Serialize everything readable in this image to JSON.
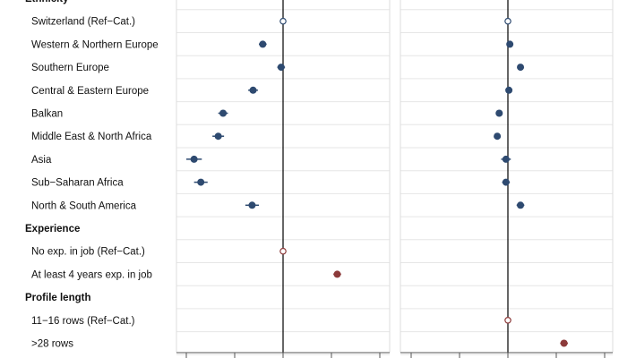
{
  "chart_data": {
    "type": "dot-whisker",
    "colors": {
      "ethnicity": "#2e4a70",
      "experience_and_length": "#8c3a3a",
      "reference_marker": "open-circle",
      "zero_line": "#000000",
      "gridline": "#e6e6e6"
    },
    "x_ticks_shown_without_labels": true,
    "rows": [
      {
        "label": "Ethnicity",
        "header": true
      },
      {
        "label": "Switzerland (Ref−Cat.)",
        "reference": true,
        "group": "ethnicity"
      },
      {
        "label": "Western & Northern Europe",
        "group": "ethnicity"
      },
      {
        "label": "Southern Europe",
        "group": "ethnicity"
      },
      {
        "label": "Central & Eastern Europe",
        "group": "ethnicity"
      },
      {
        "label": "Balkan",
        "group": "ethnicity"
      },
      {
        "label": "Middle East & North Africa",
        "group": "ethnicity"
      },
      {
        "label": "Asia",
        "group": "ethnicity"
      },
      {
        "label": "Sub−Saharan Africa",
        "group": "ethnicity"
      },
      {
        "label": "North & South America",
        "group": "ethnicity"
      },
      {
        "label": "Experience",
        "header": true
      },
      {
        "label": "No exp. in job (Ref−Cat.)",
        "reference": true,
        "group": "experience_and_length"
      },
      {
        "label": "At least 4 years exp. in job",
        "group": "experience_and_length"
      },
      {
        "label": "Profile length",
        "header": true
      },
      {
        "label": "11−16 rows (Ref−Cat.)",
        "reference": true,
        "group": "experience_and_length"
      },
      {
        "label": ">28 rows",
        "group": "experience_and_length"
      }
    ],
    "panels": [
      {
        "xlim": [
          -1.0,
          1.0
        ],
        "ticks": [
          -1.0,
          -0.5,
          0.0,
          0.5,
          1.0
        ],
        "points": [
          null,
          {
            "value": 0.0,
            "lo": 0.0,
            "hi": 0.0
          },
          {
            "value": -0.21,
            "lo": -0.25,
            "hi": -0.17
          },
          {
            "value": -0.02,
            "lo": -0.06,
            "hi": 0.02
          },
          {
            "value": -0.31,
            "lo": -0.36,
            "hi": -0.26
          },
          {
            "value": -0.62,
            "lo": -0.67,
            "hi": -0.57
          },
          {
            "value": -0.67,
            "lo": -0.73,
            "hi": -0.61
          },
          {
            "value": -0.92,
            "lo": -1.0,
            "hi": -0.84
          },
          {
            "value": -0.85,
            "lo": -0.92,
            "hi": -0.78
          },
          {
            "value": -0.32,
            "lo": -0.39,
            "hi": -0.25
          },
          null,
          {
            "value": 0.0,
            "lo": 0.0,
            "hi": 0.0
          },
          {
            "value": 0.56,
            "lo": 0.52,
            "hi": 0.6
          },
          null,
          null,
          null
        ]
      },
      {
        "xlim": [
          -1.0,
          1.0
        ],
        "ticks": [
          -1.0,
          -0.5,
          0.0,
          0.5,
          1.0
        ],
        "points": [
          null,
          {
            "value": 0.0,
            "lo": 0.0,
            "hi": 0.0
          },
          {
            "value": 0.02,
            "lo": 0.0,
            "hi": 0.04
          },
          {
            "value": 0.13,
            "lo": 0.11,
            "hi": 0.15
          },
          {
            "value": 0.01,
            "lo": -0.01,
            "hi": 0.03
          },
          {
            "value": -0.09,
            "lo": -0.11,
            "hi": -0.07
          },
          {
            "value": -0.11,
            "lo": -0.13,
            "hi": -0.09
          },
          {
            "value": -0.02,
            "lo": -0.07,
            "hi": 0.03
          },
          {
            "value": -0.02,
            "lo": -0.06,
            "hi": 0.02
          },
          {
            "value": 0.13,
            "lo": 0.09,
            "hi": 0.17
          },
          null,
          null,
          null,
          null,
          {
            "value": 0.0,
            "lo": 0.0,
            "hi": 0.0
          },
          {
            "value": 0.58,
            "lo": 0.54,
            "hi": 0.62
          }
        ]
      }
    ]
  }
}
